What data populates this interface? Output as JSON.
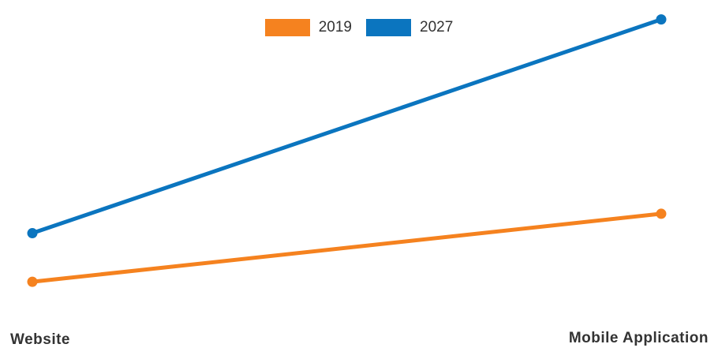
{
  "chart_data": {
    "type": "line",
    "title": "",
    "xlabel": "",
    "ylabel": "",
    "categories": [
      "Website",
      "Mobile Application"
    ],
    "series": [
      {
        "name": "2019",
        "color": "#F5821F",
        "values": [
          12,
          26
        ]
      },
      {
        "name": "2027",
        "color": "#0B75BF",
        "values": [
          22,
          66
        ]
      }
    ],
    "ylim": [
      0,
      70
    ],
    "grid": false,
    "legend_position": "top-center"
  }
}
